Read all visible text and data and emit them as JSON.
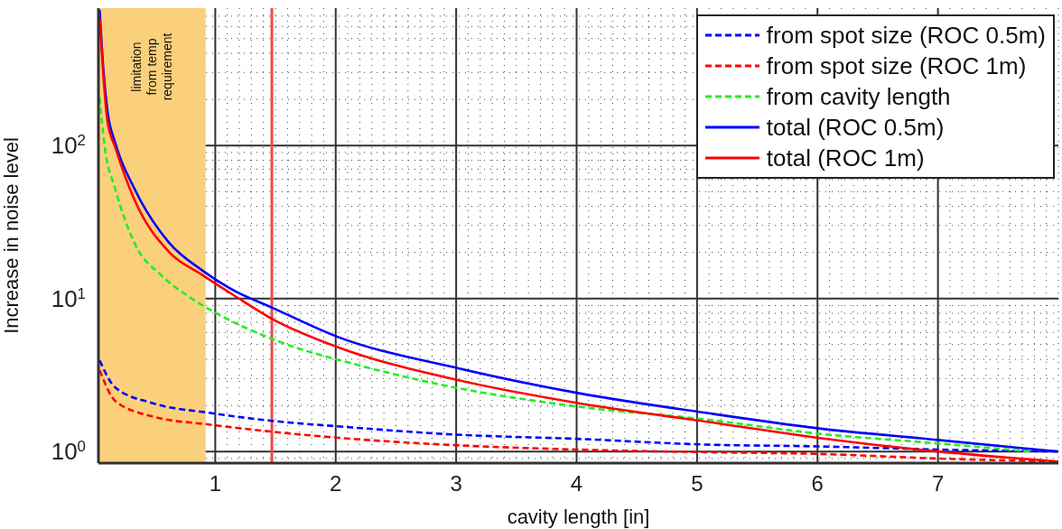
{
  "chart_data": {
    "type": "line",
    "xlabel": "cavity length [in]",
    "ylabel": "Increase in noise level",
    "xlim": [
      0.03,
      8
    ],
    "xticks": [
      1,
      2,
      3,
      4,
      5,
      6,
      7
    ],
    "ylim": [
      0.84,
      790
    ],
    "yticks": [
      {
        "value": 1,
        "label": "10$^{0}$"
      },
      {
        "value": 10,
        "label": "10$^{1}$"
      },
      {
        "value": 100,
        "label": "10$^{2}$"
      }
    ],
    "log": "y",
    "grid": true,
    "legend": "top right",
    "marker": "none",
    "bands": [
      {
        "axis": "x",
        "from": 0.03,
        "to": 0.92,
        "label": "limitation\nfrom temp\nrequirement",
        "color": "#fbd07c"
      }
    ],
    "ref_lines": [
      {
        "axis": "x",
        "value": 1.47,
        "color": "#f04848"
      }
    ],
    "series": [
      {
        "name": "from spot size (ROC 0.5m)",
        "color": "#0000ff",
        "line_style": "dashed",
        "x": [
          0.04,
          0.17,
          0.47,
          0.95,
          1.46,
          2.02,
          2.99,
          4.0,
          5.07,
          6.0,
          7.0,
          8.0
        ],
        "values": [
          3.94,
          2.62,
          2.08,
          1.79,
          1.59,
          1.46,
          1.29,
          1.21,
          1.11,
          1.08,
          1.03,
          1.0
        ]
      },
      {
        "name": "from spot size (ROC 1m)",
        "color": "#ff0000",
        "line_style": "dashed",
        "x": [
          0.04,
          0.17,
          0.47,
          0.95,
          1.46,
          2.02,
          2.99,
          4.0,
          5.07,
          6.0,
          7.0,
          8.0
        ],
        "values": [
          3.4,
          2.14,
          1.7,
          1.5,
          1.35,
          1.23,
          1.1,
          1.03,
          0.99,
          0.965,
          0.9,
          0.86
        ]
      },
      {
        "name": "from cavity length",
        "color": "#22ee22",
        "line_style": "dashed",
        "x": [
          0.04,
          0.08,
          0.17,
          0.33,
          0.56,
          0.78,
          1.01,
          1.51,
          2.21,
          2.99,
          4.0,
          5.07,
          6.0,
          7.0,
          7.78
        ],
        "values": [
          205,
          101,
          52,
          23,
          14,
          10.3,
          8.0,
          5.3,
          3.63,
          2.62,
          1.97,
          1.62,
          1.31,
          1.13,
          1.0
        ]
      },
      {
        "name": "total (ROC 0.5m)",
        "color": "#0000ff",
        "line_style": "solid",
        "x": [
          0.04,
          0.07,
          0.105,
          0.17,
          0.33,
          0.62,
          0.89,
          1.17,
          1.46,
          2.02,
          2.99,
          4.0,
          5.07,
          6.0,
          7.0,
          7.99
        ],
        "values": [
          767,
          321,
          168,
          104,
          52,
          23,
          15.3,
          11.1,
          8.8,
          5.6,
          3.54,
          2.42,
          1.79,
          1.42,
          1.19,
          1.0
        ]
      },
      {
        "name": "total (ROC 1m)",
        "color": "#ff0000",
        "line_style": "solid",
        "x": [
          0.04,
          0.07,
          0.105,
          0.17,
          0.33,
          0.62,
          0.89,
          1.17,
          1.48,
          2.02,
          2.99,
          4.0,
          5.07,
          6.0,
          7.0,
          8.0
        ],
        "values": [
          675,
          292,
          144,
          97,
          44,
          20,
          14.3,
          10.3,
          7.3,
          4.8,
          2.96,
          2.08,
          1.57,
          1.23,
          1.0,
          0.86
        ]
      }
    ]
  }
}
